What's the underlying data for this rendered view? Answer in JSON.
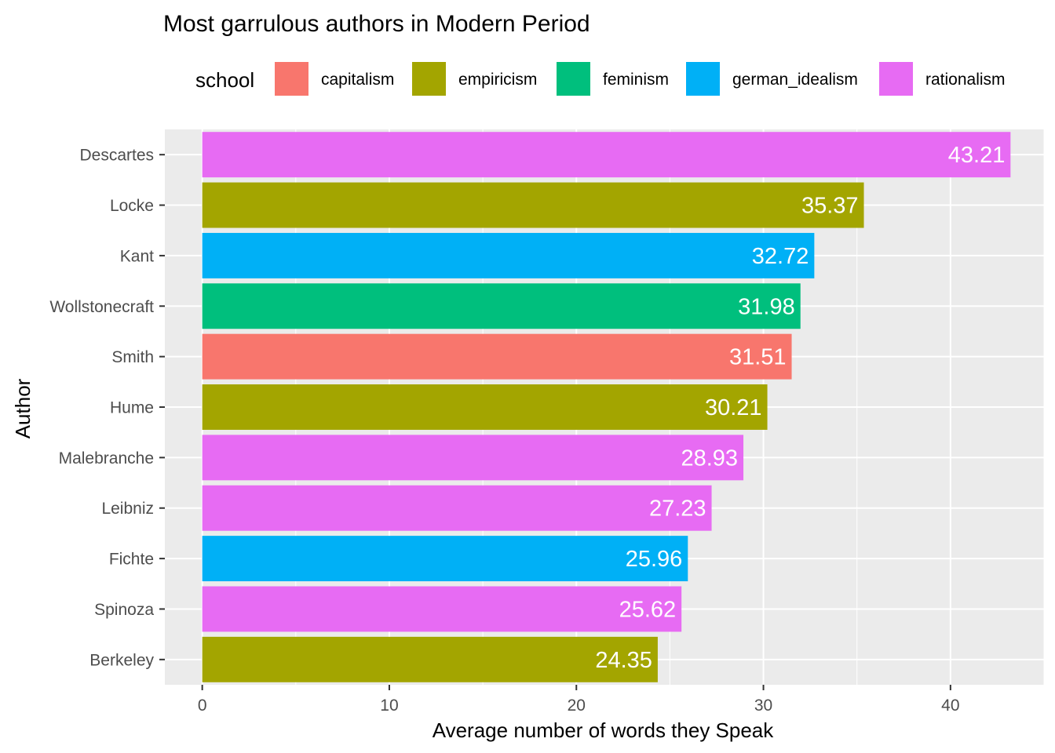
{
  "chart_data": {
    "type": "bar",
    "orientation": "horizontal",
    "title": "Most garrulous authors in Modern Period",
    "xlabel": "Average number of words they Speak",
    "ylabel": "Author",
    "xlim": [
      -2,
      45
    ],
    "xticks": [
      0,
      10,
      20,
      30,
      40
    ],
    "grid": true,
    "legend": {
      "title": "school",
      "position": "top",
      "entries": [
        {
          "name": "capitalism",
          "color": "#F8766D"
        },
        {
          "name": "empiricism",
          "color": "#A3A500"
        },
        {
          "name": "feminism",
          "color": "#00BF7D"
        },
        {
          "name": "german_idealism",
          "color": "#00B0F6"
        },
        {
          "name": "rationalism",
          "color": "#E76BF3"
        }
      ]
    },
    "categories": [
      "Descartes",
      "Locke",
      "Kant",
      "Wollstonecraft",
      "Smith",
      "Hume",
      "Malebranche",
      "Leibniz",
      "Fichte",
      "Spinoza",
      "Berkeley"
    ],
    "values": [
      43.21,
      35.37,
      32.72,
      31.98,
      31.51,
      30.21,
      28.93,
      27.23,
      25.96,
      25.62,
      24.35
    ],
    "value_labels": [
      "43.21",
      "35.37",
      "32.72",
      "31.98",
      "31.51",
      "30.21",
      "28.93",
      "27.23",
      "25.96",
      "25.62",
      "24.35"
    ],
    "schools": [
      "rationalism",
      "empiricism",
      "german_idealism",
      "feminism",
      "capitalism",
      "empiricism",
      "rationalism",
      "rationalism",
      "german_idealism",
      "rationalism",
      "empiricism"
    ]
  }
}
